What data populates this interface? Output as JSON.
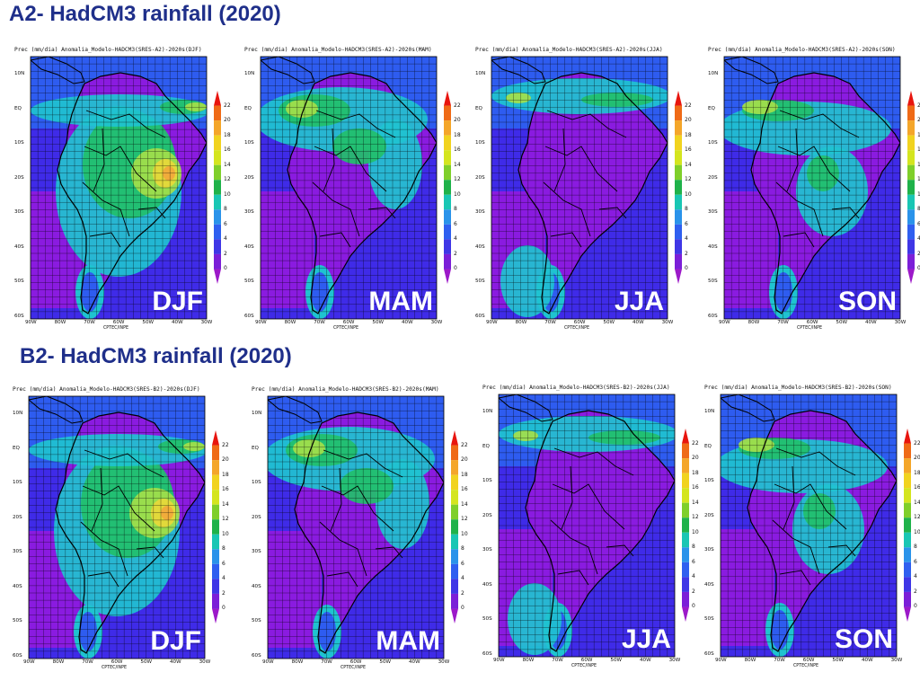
{
  "sections": [
    {
      "title": "A2- HadCM3 rainfall (2020)",
      "panels": [
        {
          "header": "Prec (mm/dia) Anomalia_Modelo-HADCM3(SRES-A2)-2020s(DJF)",
          "season": "DJF",
          "credit": "CPTEC/INPE"
        },
        {
          "header": "Prec (mm/dia) Anomalia_Modelo-HADCM3(SRES-A2)-2020s(MAM)",
          "season": "MAM",
          "credit": "CPTEC/INPE"
        },
        {
          "header": "Prec (mm/dia) Anomalia_Modelo-HADCM3(SRES-A2)-2020s(JJA)",
          "season": "JJA",
          "credit": "CPTEC/INPE"
        },
        {
          "header": "Prec (mm/dia) Anomalia_Modelo-HADCM3(SRES-A2)-2020s(SON)",
          "season": "SON",
          "credit": "CPTEC/INPE"
        }
      ]
    },
    {
      "title": "B2- HadCM3 rainfall (2020)",
      "panels": [
        {
          "header": "Prec (mm/dia) Anomalia_Modelo-HADCM3(SRES-B2)-2020s(DJF)",
          "season": "DJF",
          "credit": "CPTEC/INPE"
        },
        {
          "header": "Prec (mm/dia) Anomalia_Modelo-HADCM3(SRES-B2)-2020s(MAM)",
          "season": "MAM",
          "credit": "CPTEC/INPE"
        },
        {
          "header": "Prec (mm/dia) Anomalia_Modelo-HADCM3(SRES-B2)-2020s(JJA)",
          "season": "JJA",
          "credit": "CPTEC/INPE"
        },
        {
          "header": "Prec (mm/dia) Anomalia_Modelo-HADCM3(SRES-B2)-2020s(SON)",
          "season": "SON",
          "credit": "CPTEC/INPE"
        }
      ]
    }
  ],
  "latitude_labels": [
    "10N",
    "EQ",
    "10S",
    "20S",
    "30S",
    "40S",
    "50S",
    "60S"
  ],
  "longitude_labels": [
    "90W",
    "80W",
    "70W",
    "60W",
    "50W",
    "40W",
    "30W"
  ],
  "colorbar": {
    "labels": [
      "22",
      "20",
      "18",
      "16",
      "14",
      "12",
      "10",
      "8",
      "6",
      "4",
      "2",
      "0"
    ],
    "colors": [
      "#e8150e",
      "#ef6a17",
      "#f4a62a",
      "#f1d31f",
      "#d4e51f",
      "#7fcf2a",
      "#1fb24a",
      "#19c6b4",
      "#2a93ea",
      "#2f5ff0",
      "#3f36e6",
      "#7b1fd8",
      "#9c19c9"
    ]
  },
  "field_colors": {
    "ocean_deep": "#8a1be0",
    "ocean_mid": "#3f2be8",
    "blue": "#2e5cf0",
    "cyan": "#1fc3d0",
    "green": "#22c06a",
    "lime": "#a4e04a",
    "yellow": "#e8d83a",
    "orange": "#f2a83c"
  }
}
